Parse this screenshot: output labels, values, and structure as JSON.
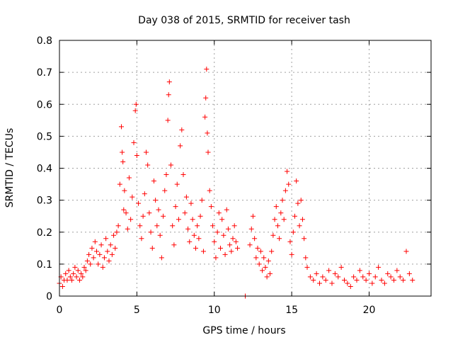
{
  "chart_data": {
    "type": "scatter",
    "title": "Day 038 of 2015, SRMTID for receiver tash",
    "xlabel": "GPS time / hours",
    "ylabel": "SRMTID / TECUs",
    "xlim": [
      0,
      24
    ],
    "ylim": [
      0,
      0.8
    ],
    "x_ticks": [
      0,
      5,
      10,
      15,
      20
    ],
    "x_tick_labels": [
      "0",
      "5",
      "10",
      "15",
      "20"
    ],
    "y_ticks": [
      0,
      0.1,
      0.2,
      0.3,
      0.4,
      0.5,
      0.6,
      0.7,
      0.8
    ],
    "y_tick_labels": [
      "0",
      "0.1",
      "0.2",
      "0.3",
      "0.4",
      "0.5",
      "0.6",
      "0.7",
      "0.8"
    ],
    "grid": true,
    "marker": "+",
    "color": "#ff0000",
    "series": [
      {
        "name": "SRMTID",
        "points": [
          [
            0.0,
            0.04
          ],
          [
            0.1,
            0.06
          ],
          [
            0.2,
            0.03
          ],
          [
            0.3,
            0.05
          ],
          [
            0.4,
            0.07
          ],
          [
            0.5,
            0.05
          ],
          [
            0.6,
            0.08
          ],
          [
            0.7,
            0.06
          ],
          [
            0.8,
            0.05
          ],
          [
            0.9,
            0.07
          ],
          [
            1.0,
            0.09
          ],
          [
            1.1,
            0.06
          ],
          [
            1.2,
            0.08
          ],
          [
            1.3,
            0.05
          ],
          [
            1.4,
            0.07
          ],
          [
            1.5,
            0.06
          ],
          [
            1.6,
            0.09
          ],
          [
            1.7,
            0.08
          ],
          [
            1.8,
            0.11
          ],
          [
            1.9,
            0.13
          ],
          [
            2.0,
            0.1
          ],
          [
            2.1,
            0.15
          ],
          [
            2.2,
            0.12
          ],
          [
            2.3,
            0.17
          ],
          [
            2.4,
            0.14
          ],
          [
            2.5,
            0.1
          ],
          [
            2.6,
            0.13
          ],
          [
            2.7,
            0.16
          ],
          [
            2.8,
            0.09
          ],
          [
            2.9,
            0.12
          ],
          [
            3.0,
            0.18
          ],
          [
            3.1,
            0.14
          ],
          [
            3.2,
            0.11
          ],
          [
            3.3,
            0.16
          ],
          [
            3.4,
            0.13
          ],
          [
            3.5,
            0.19
          ],
          [
            3.6,
            0.15
          ],
          [
            3.7,
            0.2
          ],
          [
            3.8,
            0.22
          ],
          [
            3.9,
            0.35
          ],
          [
            4.0,
            0.53
          ],
          [
            4.05,
            0.45
          ],
          [
            4.1,
            0.42
          ],
          [
            4.15,
            0.27
          ],
          [
            4.2,
            0.33
          ],
          [
            4.3,
            0.26
          ],
          [
            4.4,
            0.21
          ],
          [
            4.5,
            0.37
          ],
          [
            4.6,
            0.24
          ],
          [
            4.7,
            0.31
          ],
          [
            4.8,
            0.48
          ],
          [
            4.9,
            0.58
          ],
          [
            4.95,
            0.6
          ],
          [
            5.0,
            0.44
          ],
          [
            5.1,
            0.29
          ],
          [
            5.2,
            0.22
          ],
          [
            5.3,
            0.18
          ],
          [
            5.4,
            0.25
          ],
          [
            5.5,
            0.32
          ],
          [
            5.6,
            0.45
          ],
          [
            5.7,
            0.41
          ],
          [
            5.8,
            0.26
          ],
          [
            5.9,
            0.2
          ],
          [
            6.0,
            0.15
          ],
          [
            6.1,
            0.36
          ],
          [
            6.2,
            0.3
          ],
          [
            6.3,
            0.22
          ],
          [
            6.4,
            0.27
          ],
          [
            6.5,
            0.19
          ],
          [
            6.6,
            0.12
          ],
          [
            6.7,
            0.25
          ],
          [
            6.8,
            0.33
          ],
          [
            6.9,
            0.38
          ],
          [
            7.0,
            0.55
          ],
          [
            7.05,
            0.63
          ],
          [
            7.1,
            0.67
          ],
          [
            7.2,
            0.41
          ],
          [
            7.3,
            0.22
          ],
          [
            7.4,
            0.16
          ],
          [
            7.5,
            0.28
          ],
          [
            7.6,
            0.35
          ],
          [
            7.7,
            0.24
          ],
          [
            7.8,
            0.47
          ],
          [
            7.9,
            0.52
          ],
          [
            8.0,
            0.38
          ],
          [
            8.1,
            0.26
          ],
          [
            8.2,
            0.31
          ],
          [
            8.3,
            0.21
          ],
          [
            8.4,
            0.17
          ],
          [
            8.5,
            0.29
          ],
          [
            8.6,
            0.24
          ],
          [
            8.7,
            0.19
          ],
          [
            8.8,
            0.15
          ],
          [
            8.9,
            0.22
          ],
          [
            9.0,
            0.18
          ],
          [
            9.1,
            0.25
          ],
          [
            9.2,
            0.3
          ],
          [
            9.3,
            0.14
          ],
          [
            9.4,
            0.56
          ],
          [
            9.45,
            0.62
          ],
          [
            9.5,
            0.71
          ],
          [
            9.55,
            0.51
          ],
          [
            9.6,
            0.45
          ],
          [
            9.7,
            0.33
          ],
          [
            9.8,
            0.28
          ],
          [
            9.9,
            0.22
          ],
          [
            10.0,
            0.17
          ],
          [
            10.1,
            0.12
          ],
          [
            10.2,
            0.2
          ],
          [
            10.3,
            0.26
          ],
          [
            10.4,
            0.15
          ],
          [
            10.5,
            0.24
          ],
          [
            10.6,
            0.19
          ],
          [
            10.7,
            0.13
          ],
          [
            10.8,
            0.27
          ],
          [
            10.9,
            0.21
          ],
          [
            11.0,
            0.16
          ],
          [
            11.1,
            0.14
          ],
          [
            11.2,
            0.18
          ],
          [
            11.3,
            0.22
          ],
          [
            11.4,
            0.17
          ],
          [
            11.5,
            0.15
          ],
          [
            12.0,
            0.0
          ],
          [
            12.3,
            0.16
          ],
          [
            12.4,
            0.21
          ],
          [
            12.5,
            0.25
          ],
          [
            12.6,
            0.18
          ],
          [
            12.7,
            0.12
          ],
          [
            12.8,
            0.15
          ],
          [
            12.9,
            0.1
          ],
          [
            13.0,
            0.14
          ],
          [
            13.1,
            0.08
          ],
          [
            13.2,
            0.12
          ],
          [
            13.3,
            0.09
          ],
          [
            13.4,
            0.06
          ],
          [
            13.5,
            0.11
          ],
          [
            13.6,
            0.07
          ],
          [
            13.7,
            0.14
          ],
          [
            13.8,
            0.19
          ],
          [
            13.9,
            0.24
          ],
          [
            14.0,
            0.28
          ],
          [
            14.1,
            0.22
          ],
          [
            14.2,
            0.18
          ],
          [
            14.3,
            0.26
          ],
          [
            14.4,
            0.3
          ],
          [
            14.5,
            0.24
          ],
          [
            14.6,
            0.33
          ],
          [
            14.7,
            0.39
          ],
          [
            14.8,
            0.35
          ],
          [
            14.9,
            0.17
          ],
          [
            15.0,
            0.13
          ],
          [
            15.1,
            0.2
          ],
          [
            15.2,
            0.25
          ],
          [
            15.3,
            0.36
          ],
          [
            15.4,
            0.29
          ],
          [
            15.5,
            0.22
          ],
          [
            15.6,
            0.3
          ],
          [
            15.7,
            0.24
          ],
          [
            15.8,
            0.18
          ],
          [
            15.9,
            0.12
          ],
          [
            16.0,
            0.09
          ],
          [
            16.2,
            0.06
          ],
          [
            16.4,
            0.05
          ],
          [
            16.6,
            0.07
          ],
          [
            16.8,
            0.04
          ],
          [
            17.0,
            0.06
          ],
          [
            17.2,
            0.05
          ],
          [
            17.4,
            0.08
          ],
          [
            17.6,
            0.04
          ],
          [
            17.8,
            0.07
          ],
          [
            18.0,
            0.06
          ],
          [
            18.2,
            0.09
          ],
          [
            18.4,
            0.05
          ],
          [
            18.6,
            0.04
          ],
          [
            18.8,
            0.03
          ],
          [
            19.0,
            0.06
          ],
          [
            19.2,
            0.05
          ],
          [
            19.4,
            0.08
          ],
          [
            19.6,
            0.06
          ],
          [
            19.8,
            0.05
          ],
          [
            20.0,
            0.07
          ],
          [
            20.2,
            0.04
          ],
          [
            20.4,
            0.06
          ],
          [
            20.6,
            0.09
          ],
          [
            20.8,
            0.05
          ],
          [
            21.0,
            0.04
          ],
          [
            21.2,
            0.07
          ],
          [
            21.4,
            0.06
          ],
          [
            21.6,
            0.05
          ],
          [
            21.8,
            0.08
          ],
          [
            22.0,
            0.06
          ],
          [
            22.2,
            0.05
          ],
          [
            22.4,
            0.14
          ],
          [
            22.6,
            0.07
          ],
          [
            22.8,
            0.05
          ]
        ]
      }
    ]
  }
}
